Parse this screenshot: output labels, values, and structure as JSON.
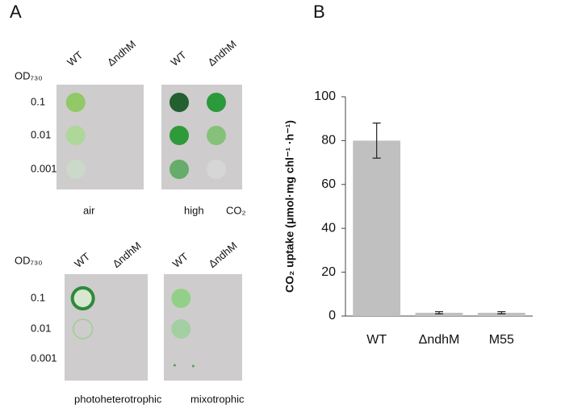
{
  "panel_a": {
    "label": "A",
    "sections": [
      {
        "od_label": "OD₇₃₀",
        "rows": [
          "0.1",
          "0.01",
          "0.001"
        ],
        "plates": [
          {
            "columns": [
              "WT",
              "ΔndhM"
            ],
            "condition": [
              "air"
            ]
          },
          {
            "columns": [
              "WT",
              "ΔndhM"
            ],
            "condition": [
              "high",
              "CO₂"
            ]
          }
        ]
      },
      {
        "od_label": "OD₇₃₀",
        "rows": [
          "0.1",
          "0.01",
          "0.001"
        ],
        "plates": [
          {
            "columns": [
              "WT",
              "ΔndhM"
            ],
            "condition": [
              "photoheterotrophic"
            ]
          },
          {
            "columns": [
              "WT",
              "ΔndhM"
            ],
            "condition": [
              "mixotrophic"
            ]
          }
        ]
      }
    ]
  },
  "chart_data": {
    "type": "bar",
    "panel_label": "B",
    "ylabel": "CO₂ uptake (μmol·mg chl⁻¹ ·h⁻¹)",
    "categories": [
      "WT",
      "ΔndhM",
      "M55"
    ],
    "values": [
      80,
      1.5,
      1.5
    ],
    "errors": [
      8,
      0.5,
      0.5
    ],
    "color": "#c0c0c0",
    "ylim": [
      0,
      100
    ],
    "yticks": [
      0,
      20,
      40,
      60,
      80,
      100
    ],
    "grid": false
  }
}
